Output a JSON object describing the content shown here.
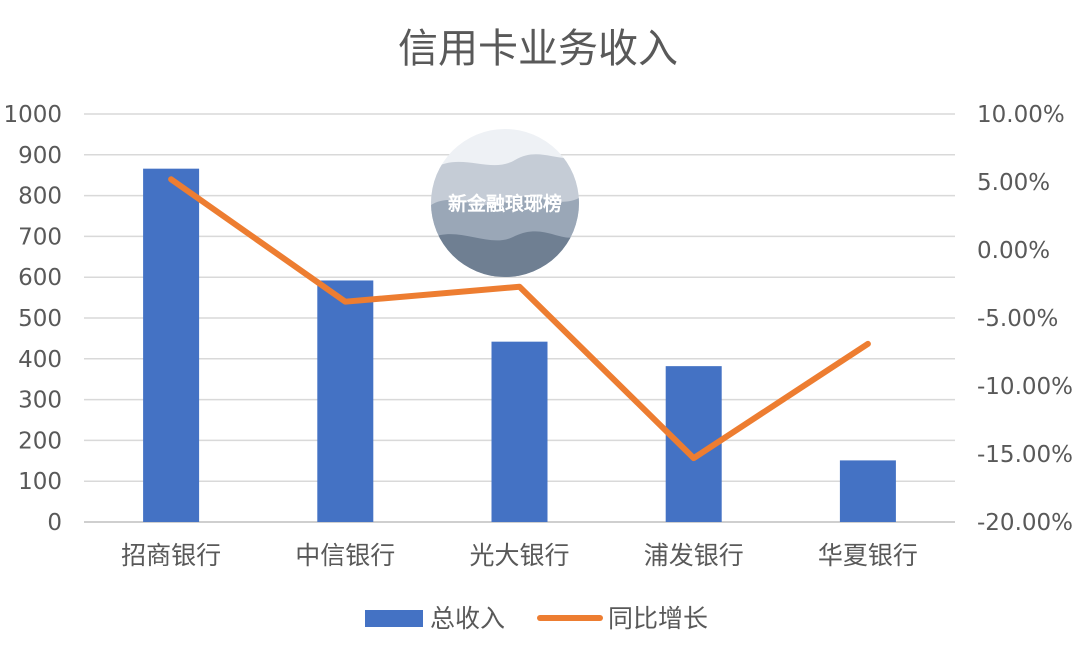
{
  "chart_data": {
    "type": "bar",
    "title": "信用卡业务收入",
    "categories": [
      "招商银行",
      "中信银行",
      "光大银行",
      "浦发银行",
      "华夏银行"
    ],
    "series": [
      {
        "name": "总收入",
        "type": "bar",
        "axis": "left",
        "color": "#4472C4",
        "values": [
          866,
          592,
          442,
          382,
          151
        ]
      },
      {
        "name": "同比增长",
        "type": "line",
        "axis": "right",
        "color": "#ED7D31",
        "values": [
          5.2,
          -3.8,
          -2.7,
          -15.3,
          -6.9
        ]
      }
    ],
    "ylim_left": [
      0,
      1000
    ],
    "yticks_left": [
      0,
      100,
      200,
      300,
      400,
      500,
      600,
      700,
      800,
      900,
      1000
    ],
    "ylim_right": [
      -20,
      10
    ],
    "yticks_right": [
      "-20.00%",
      "-15.00%",
      "-10.00%",
      "-5.00%",
      "0.00%",
      "5.00%",
      "10.00%"
    ],
    "yticks_right_values": [
      -20,
      -15,
      -10,
      -5,
      0,
      5,
      10
    ],
    "grid": true,
    "legend_position": "bottom"
  },
  "watermark": {
    "text": "新金融琅琊榜",
    "colors": [
      "#c5ccd6",
      "#9aa7b7",
      "#6f7f92"
    ]
  }
}
